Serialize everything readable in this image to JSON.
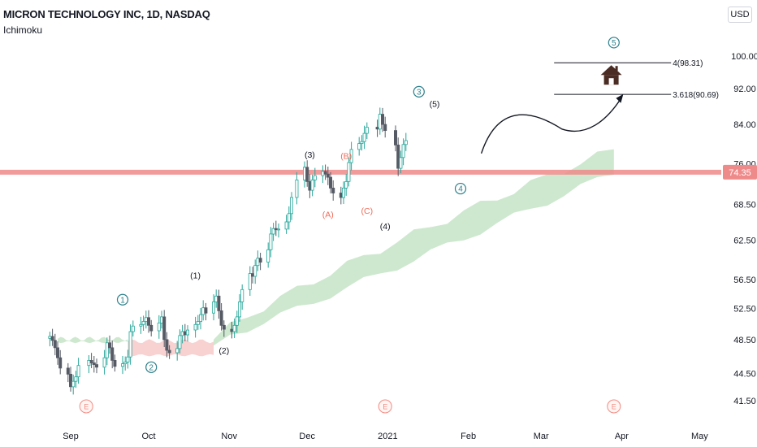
{
  "header": {
    "title": "MICRON TECHNOLOGY INC, 1D, NASDAQ",
    "indicator": "Ichimoku",
    "currency": "USD"
  },
  "colors": {
    "up": "#26a69a",
    "down": "#555a64",
    "candle_body_up": "#ffffff",
    "cloud_bull": "#a5d6a7",
    "cloud_bear": "#ef9a9a",
    "support_line": "#ef8a8a",
    "wave_teal": "#2a7f8a",
    "wave_red": "#ef6c5a",
    "price_tag": "#ef8a8a"
  },
  "annotations": {
    "level_label": "74.35",
    "fib_upper": "4(98.31)",
    "fib_lower": "3.618(90.69)",
    "waves": [
      {
        "text": "1",
        "style": "circle-teal",
        "date": "2020-09-21",
        "price": 53.7
      },
      {
        "text": "2",
        "style": "circle-teal",
        "date": "2020-10-02",
        "price": 45.2
      },
      {
        "text": "3",
        "style": "circle-teal",
        "date": "2021-01-13",
        "price": 91.3
      },
      {
        "text": "4",
        "style": "circle-teal",
        "date": "2021-01-29",
        "price": 71.3
      },
      {
        "text": "5",
        "style": "circle-teal",
        "date": "2021-03-29",
        "price": 103.5
      },
      {
        "text": "(1)",
        "style": "plain",
        "date": "2020-10-19",
        "price": 57.2
      },
      {
        "text": "(2)",
        "style": "plain",
        "date": "2020-10-30",
        "price": 47.2
      },
      {
        "text": "(3)",
        "style": "plain",
        "date": "2020-12-02",
        "price": 77.8
      },
      {
        "text": "(4)",
        "style": "plain",
        "date": "2020-12-31",
        "price": 64.8
      },
      {
        "text": "(5)",
        "style": "plain",
        "date": "2021-01-19",
        "price": 88.6
      },
      {
        "text": "(A)",
        "style": "red",
        "date": "2020-12-09",
        "price": 66.8
      },
      {
        "text": "(B)",
        "style": "red",
        "date": "2020-12-16",
        "price": 77.6
      },
      {
        "text": "(C)",
        "style": "red",
        "date": "2020-12-24",
        "price": 67.4
      }
    ],
    "earnings": [
      {
        "text": "E",
        "date": "2020-09-07"
      },
      {
        "text": "E",
        "date": "2020-12-31"
      },
      {
        "text": "E",
        "date": "2021-03-29"
      }
    ]
  },
  "chart_data": {
    "type": "candlestick",
    "title": "MICRON TECHNOLOGY INC, 1D, NASDAQ",
    "xlabel": "",
    "ylabel": "",
    "x_ticks": [
      "Sep",
      "Oct",
      "Nov",
      "Dec",
      "2021",
      "Feb",
      "Mar",
      "Apr",
      "May"
    ],
    "x_tick_dates": [
      "2020-09-01",
      "2020-10-01",
      "2020-11-01",
      "2020-12-01",
      "2021-01-01",
      "2021-02-01",
      "2021-03-01",
      "2021-04-01",
      "2021-05-01"
    ],
    "y_ticks": [
      "100.00",
      "92.00",
      "84.00",
      "76.00",
      "68.50",
      "62.50",
      "56.50",
      "52.50",
      "48.50",
      "44.50",
      "41.50"
    ],
    "y_tick_values": [
      100.0,
      92.0,
      84.0,
      76.0,
      68.5,
      62.5,
      56.5,
      52.5,
      48.5,
      44.5,
      41.5
    ],
    "ylim": [
      39.5,
      110.0
    ],
    "scale": "log",
    "horizontal_levels": [
      {
        "price": 74.35,
        "label": "74.35"
      },
      {
        "price": 98.31,
        "label": "4(98.31)"
      },
      {
        "price": 90.69,
        "label": "3.618(90.69)"
      }
    ],
    "close_values": [
      48.9,
      48.4,
      47.5,
      46.3,
      45.1,
      44.4,
      43.0,
      43.6,
      44.1,
      45.4,
      46.0,
      45.7,
      45.5,
      45.2,
      46.3,
      48.1,
      47.5,
      46.0,
      45.3,
      45.6,
      45.8,
      46.4,
      49.5,
      50.2,
      50.4,
      50.8,
      51.3,
      50.3,
      49.6,
      50.6,
      51.4,
      48.5,
      47.2,
      46.9,
      47.4,
      49.0,
      49.5,
      49.1,
      49.7,
      50.4,
      50.8,
      51.7,
      52.6,
      51.9,
      53.4,
      54.2,
      52.2,
      50.3,
      49.8,
      49.5,
      50.3,
      51.4,
      53.4,
      55.1,
      57.4,
      57.0,
      58.6,
      59.7,
      59.1,
      61.0,
      63.5,
      64.4,
      64.2,
      64.3,
      65.5,
      66.9,
      69.7,
      72.9,
      75.3,
      72.6,
      71.0,
      72.9,
      73.7,
      74.5,
      74.0,
      73.4,
      71.4,
      70.5,
      69.7,
      71.4,
      72.6,
      76.2,
      78.8,
      80.0,
      80.4,
      82.1,
      83.4,
      83.0,
      86.2,
      84.0,
      82.7,
      79.7,
      75.1,
      77.2,
      79.8,
      80.6
    ],
    "cloud_spans": [
      {
        "from": "2020-08-27",
        "to": "2020-09-23",
        "top": 48.6,
        "bottom": 48.2,
        "color": "bull"
      },
      {
        "from": "2020-09-23",
        "to": "2020-10-26",
        "top": 48.3,
        "bottom": 46.6,
        "color": "bear"
      },
      {
        "from": "2020-10-26",
        "to": "2021-03-29",
        "top_from": 48.5,
        "top_to": 78.8,
        "bottom_from": 48.3,
        "bottom_to": 74.3,
        "color": "bull"
      }
    ]
  }
}
